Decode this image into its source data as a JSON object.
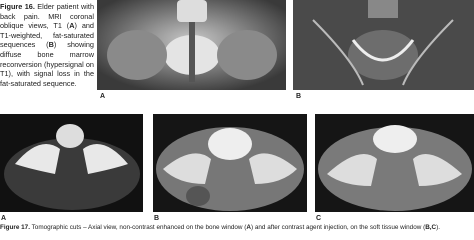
{
  "figure16": {
    "label": "Figure 16.",
    "text1": "Elder patient with back pain. MRI coronal oblique views, T1 (",
    "a": "A",
    "text2": ") and T1-weighted, fat-saturated sequences (",
    "b": "B",
    "text3": ") showing diffuse bone marrow reconversion (hypersignal on T1), with signal loss in the fat-saturated sequence.",
    "panels": [
      "A",
      "B"
    ]
  },
  "figure17": {
    "label": "Figure 17.",
    "text1": "Tomographic cuts – Axial view, non-contrast enhanced on the bone window (",
    "a": "A",
    "text2": ") and after contrast agent injection, on the soft tissue window (",
    "bc": "B,C",
    "text3": ").",
    "panels": [
      "A",
      "B",
      "C"
    ]
  }
}
